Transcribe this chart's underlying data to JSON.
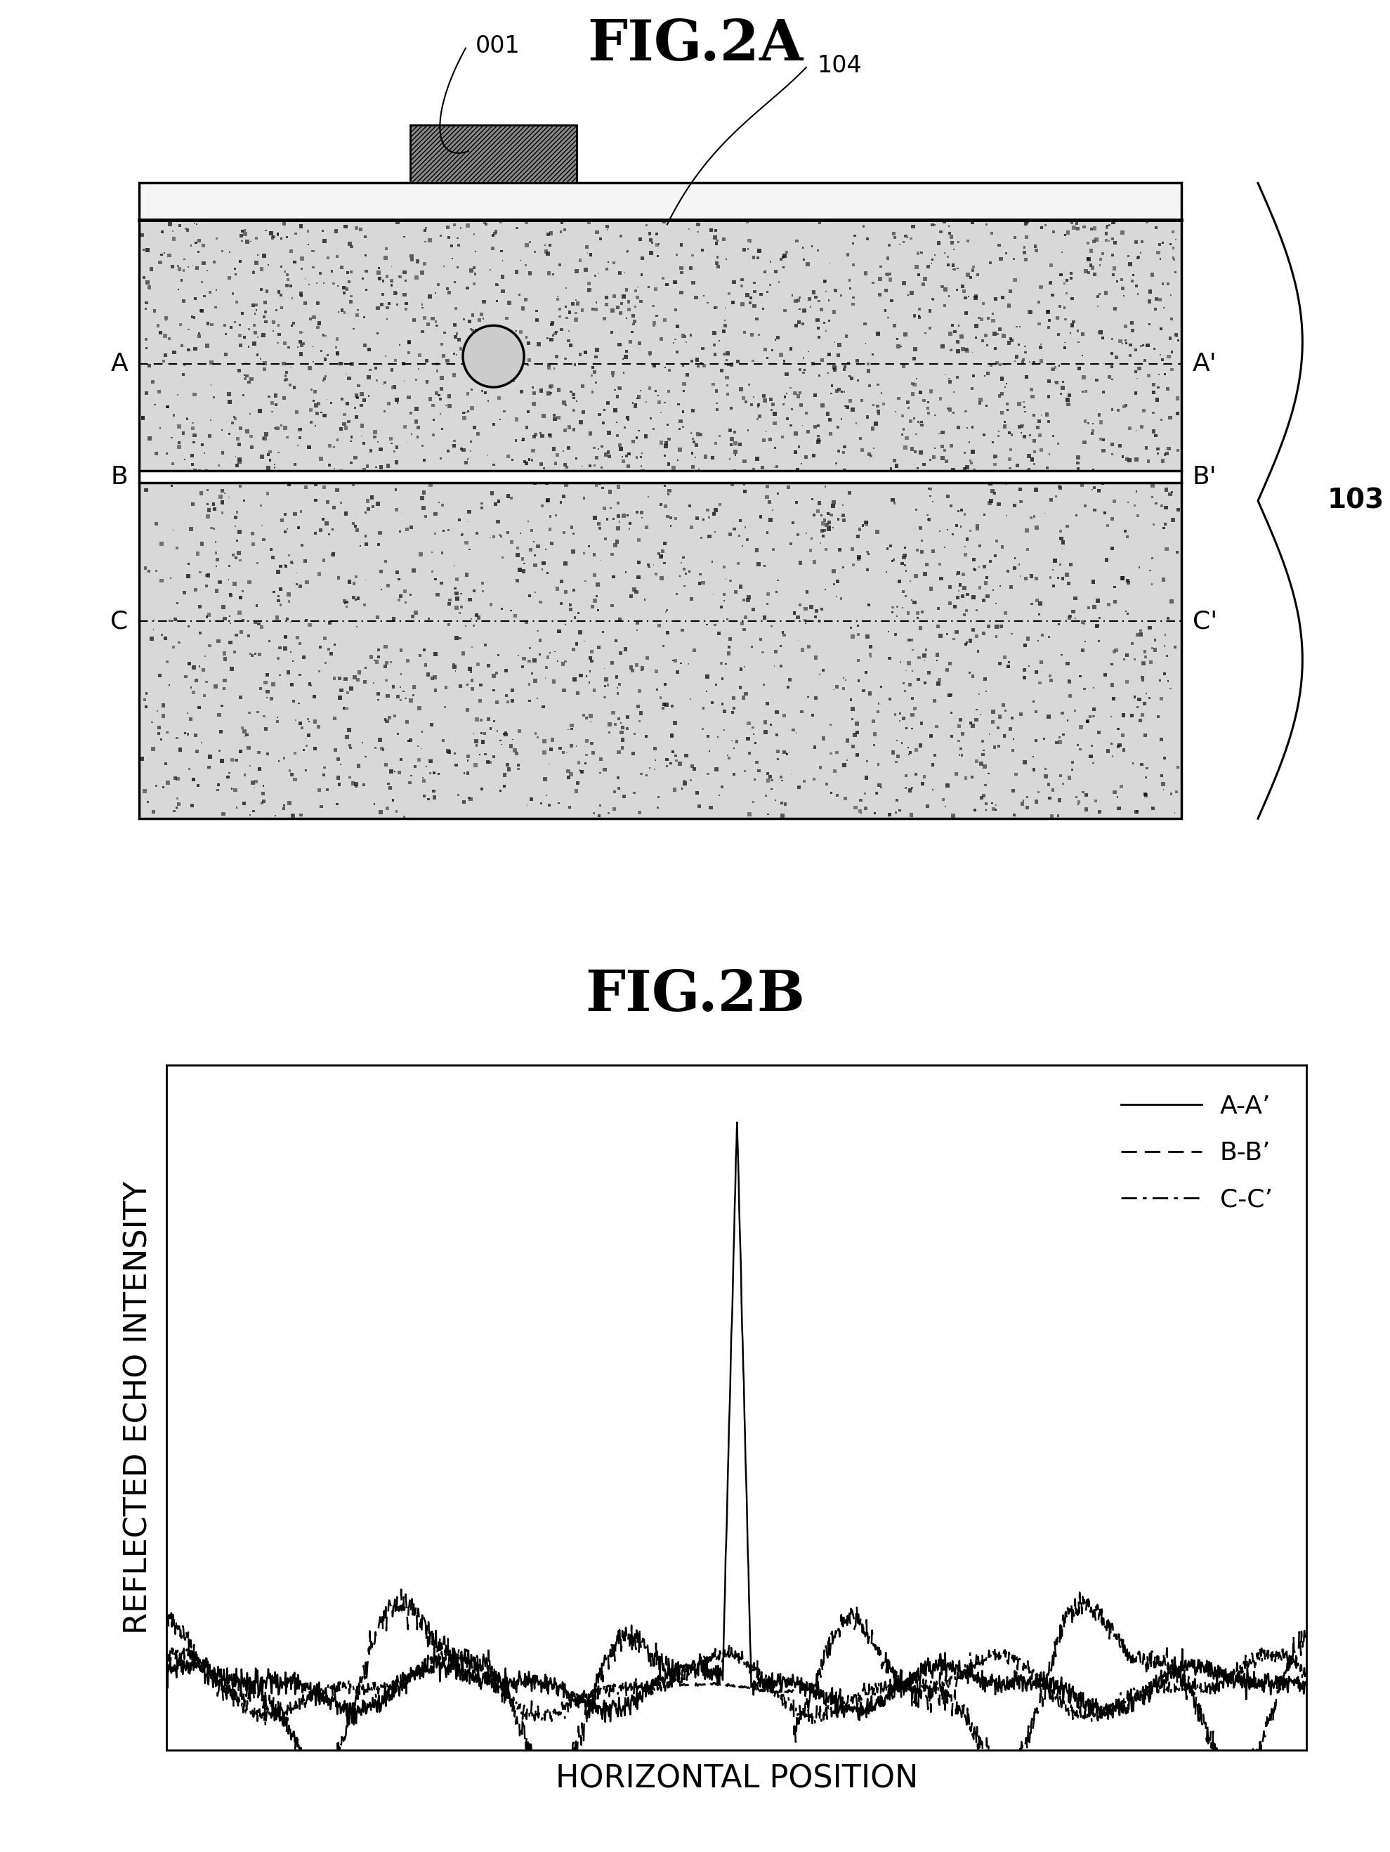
{
  "fig2a_title": "FIG.2A",
  "fig2b_title": "FIG.2B",
  "label_001": "001",
  "label_104": "104",
  "label_103": "103",
  "label_A": "A",
  "label_Ap": "A’",
  "label_B": "B",
  "label_Bp": "B’",
  "label_C": "C",
  "label_Cp": "C’",
  "xlabel": "HORIZONTAL POSITION",
  "ylabel": "REFLECTED ECHO INTENSITY",
  "legend_AA": "A-A’",
  "legend_BB": "B-B’",
  "legend_CC": "C-C’",
  "bg_color": "#ffffff"
}
